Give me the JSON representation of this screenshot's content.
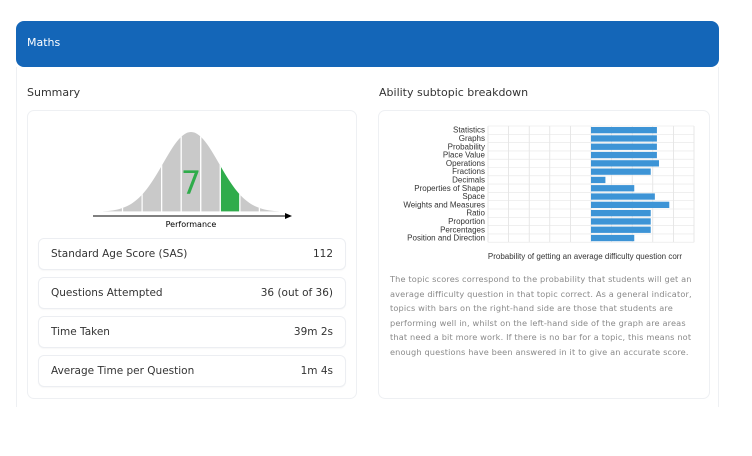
{
  "header": {
    "title": "Maths"
  },
  "summary": {
    "title": "Summary",
    "stanine": "7",
    "performance_label": "Performance",
    "stanine_count": 9,
    "stanine_value": 7,
    "stats": [
      {
        "label": "Standard Age Score (SAS)",
        "value": "112"
      },
      {
        "label": "Questions Attempted",
        "value": "36 (out of 36)"
      },
      {
        "label": "Time Taken",
        "value": "39m 2s"
      },
      {
        "label": "Average Time per Question",
        "value": "1m 4s"
      }
    ]
  },
  "breakdown": {
    "title": "Ability subtopic breakdown",
    "description": "The topic scores correspond to the probability that students will get an average difficulty question in that topic correct. As a general indicator, topics with bars on the right-hand side are those that students are performing well in, whilst on the left-hand side of the graph are areas that need a bit more work. If there is no bar for a topic, this means not enough questions have been answered in it to give an accurate score."
  },
  "chart_data": {
    "type": "bar",
    "orientation": "horizontal",
    "categories": [
      "Statistics",
      "Graphs",
      "Probability",
      "Place Value",
      "Operations",
      "Fractions",
      "Decimals",
      "Properties of Shape",
      "Space",
      "Weights and Measures",
      "Ratio",
      "Proportion",
      "Percentages",
      "Position and Direction"
    ],
    "values": [
      0.82,
      0.82,
      0.82,
      0.82,
      0.83,
      0.79,
      0.57,
      0.71,
      0.81,
      0.88,
      0.79,
      0.79,
      0.79,
      0.71
    ],
    "xlim": [
      0,
      1
    ],
    "xlabel": "Probability of getting an average difficulty question corr",
    "grid": true,
    "bar_color": "#3d94d6"
  },
  "colors": {
    "header": "#1466b8",
    "highlight": "#2fac4b",
    "bell": "#c9c9c9"
  }
}
